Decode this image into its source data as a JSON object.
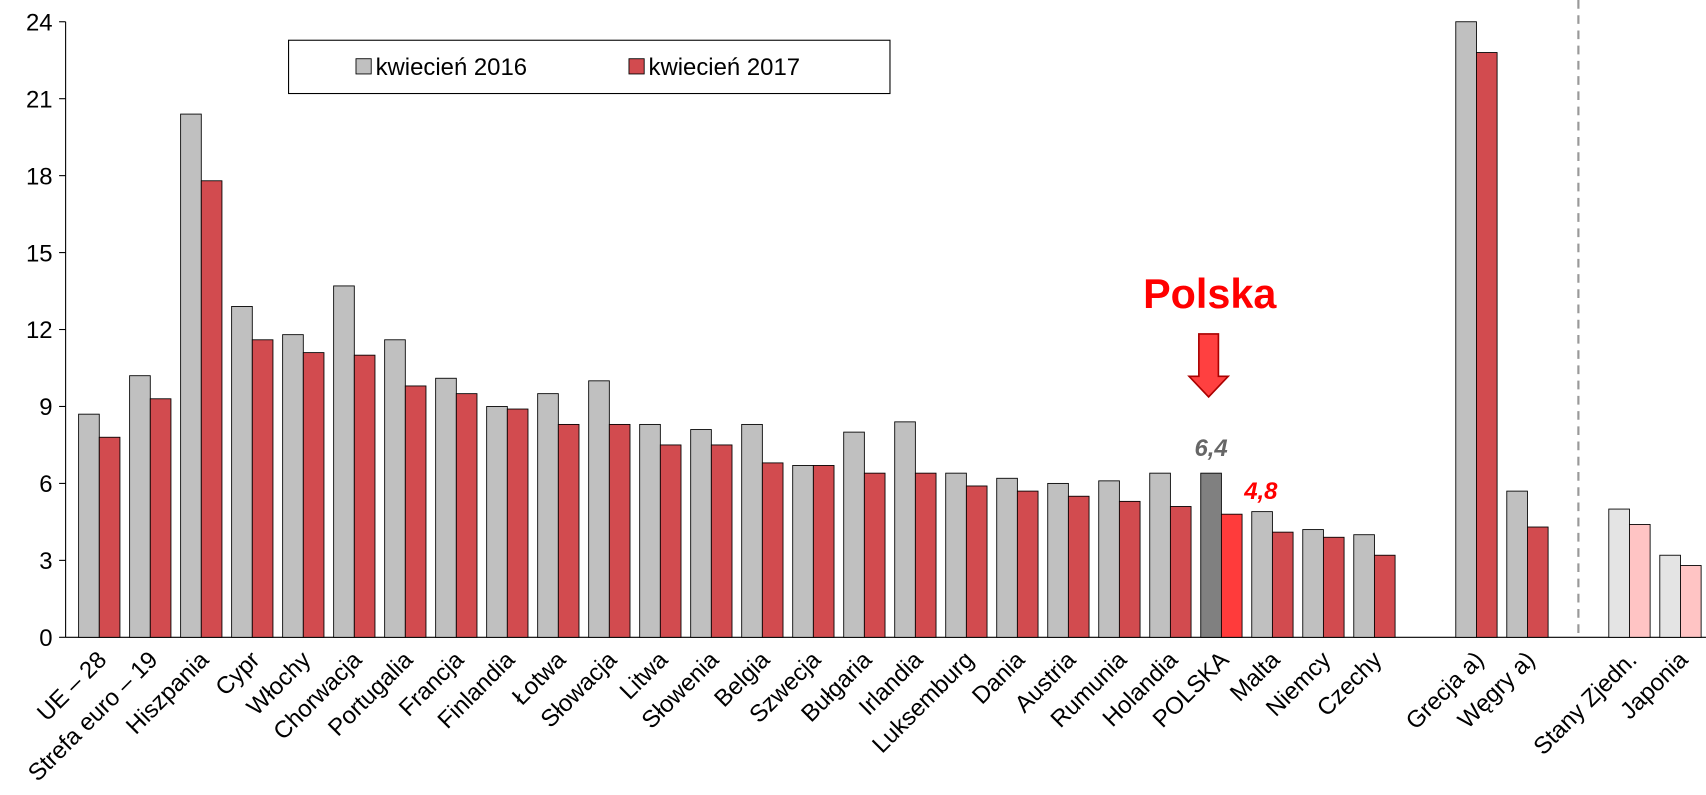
{
  "chart_data": {
    "type": "bar",
    "categories": [
      "UE – 28",
      "Strefa euro – 19",
      "Hiszpania",
      "Cypr",
      "Włochy",
      "Chorwacja",
      "Portugalia",
      "Francja",
      "Finlandia",
      "Łotwa",
      "Słowacja",
      "Litwa",
      "Słowenia",
      "Belgia",
      "Szwecja",
      "Bułgaria",
      "Irlandia",
      "Luksemburg",
      "Dania",
      "Austria",
      "Rumunia",
      "Holandia",
      "POLSKA",
      "Malta",
      "Niemcy",
      "Czechy",
      null,
      "Grecja a)",
      "Węgry a)",
      null,
      "Stany Zjedn.",
      "Japonia"
    ],
    "series": [
      {
        "name": "kwiecień 2016",
        "color": "#c0c0c0",
        "colors": [
          "#c0c0c0",
          "#c0c0c0",
          "#c0c0c0",
          "#c0c0c0",
          "#c0c0c0",
          "#c0c0c0",
          "#c0c0c0",
          "#c0c0c0",
          "#c0c0c0",
          "#c0c0c0",
          "#c0c0c0",
          "#c0c0c0",
          "#c0c0c0",
          "#c0c0c0",
          "#c0c0c0",
          "#c0c0c0",
          "#c0c0c0",
          "#c0c0c0",
          "#c0c0c0",
          "#c0c0c0",
          "#c0c0c0",
          "#c0c0c0",
          "#808080",
          "#c0c0c0",
          "#c0c0c0",
          "#c0c0c0",
          null,
          "#c0c0c0",
          "#c0c0c0",
          null,
          "#e4e4e4",
          "#e4e4e4"
        ],
        "values": [
          8.7,
          10.2,
          20.4,
          12.9,
          11.8,
          13.7,
          11.6,
          10.1,
          9.0,
          9.5,
          10.0,
          8.3,
          8.1,
          8.3,
          6.7,
          8.0,
          8.4,
          6.4,
          6.2,
          6.0,
          6.1,
          6.4,
          6.4,
          4.9,
          4.2,
          4.0,
          null,
          24.0,
          5.7,
          null,
          5.0,
          3.2
        ],
        "value_labels": [
          null,
          null,
          null,
          null,
          null,
          null,
          null,
          null,
          null,
          null,
          null,
          null,
          null,
          null,
          null,
          null,
          null,
          null,
          null,
          null,
          null,
          null,
          "6,4",
          null,
          null,
          null,
          null,
          null,
          null,
          null,
          null,
          null
        ],
        "label_color": "#666666"
      },
      {
        "name": "kwiecień 2017",
        "color": "#d24b4f",
        "colors": [
          "#d24b4f",
          "#d24b4f",
          "#d24b4f",
          "#d24b4f",
          "#d24b4f",
          "#d24b4f",
          "#d24b4f",
          "#d24b4f",
          "#d24b4f",
          "#d24b4f",
          "#d24b4f",
          "#d24b4f",
          "#d24b4f",
          "#d24b4f",
          "#d24b4f",
          "#d24b4f",
          "#d24b4f",
          "#d24b4f",
          "#d24b4f",
          "#d24b4f",
          "#d24b4f",
          "#d24b4f",
          "#ff3b3b",
          "#d24b4f",
          "#d24b4f",
          "#d24b4f",
          null,
          "#d24b4f",
          "#d24b4f",
          null,
          "#ffc4c4",
          "#ffc4c4"
        ],
        "values": [
          7.8,
          9.3,
          17.8,
          11.6,
          11.1,
          11.0,
          9.8,
          9.5,
          8.9,
          8.3,
          8.3,
          7.5,
          7.5,
          6.8,
          6.7,
          6.4,
          6.4,
          5.9,
          5.7,
          5.5,
          5.3,
          5.1,
          4.8,
          4.1,
          3.9,
          3.2,
          null,
          22.8,
          4.3,
          null,
          4.4,
          2.8
        ],
        "value_labels": [
          null,
          null,
          null,
          null,
          null,
          null,
          null,
          null,
          null,
          null,
          null,
          null,
          null,
          null,
          null,
          null,
          null,
          null,
          null,
          null,
          null,
          null,
          "4,8",
          null,
          null,
          null,
          null,
          null,
          null,
          null,
          null,
          null
        ],
        "label_color": "#ff0000"
      }
    ],
    "annotation": "Polska",
    "ylim": [
      0,
      24
    ],
    "yticks": [
      0,
      3,
      6,
      9,
      12,
      15,
      18,
      21,
      24
    ],
    "grid": false
  }
}
